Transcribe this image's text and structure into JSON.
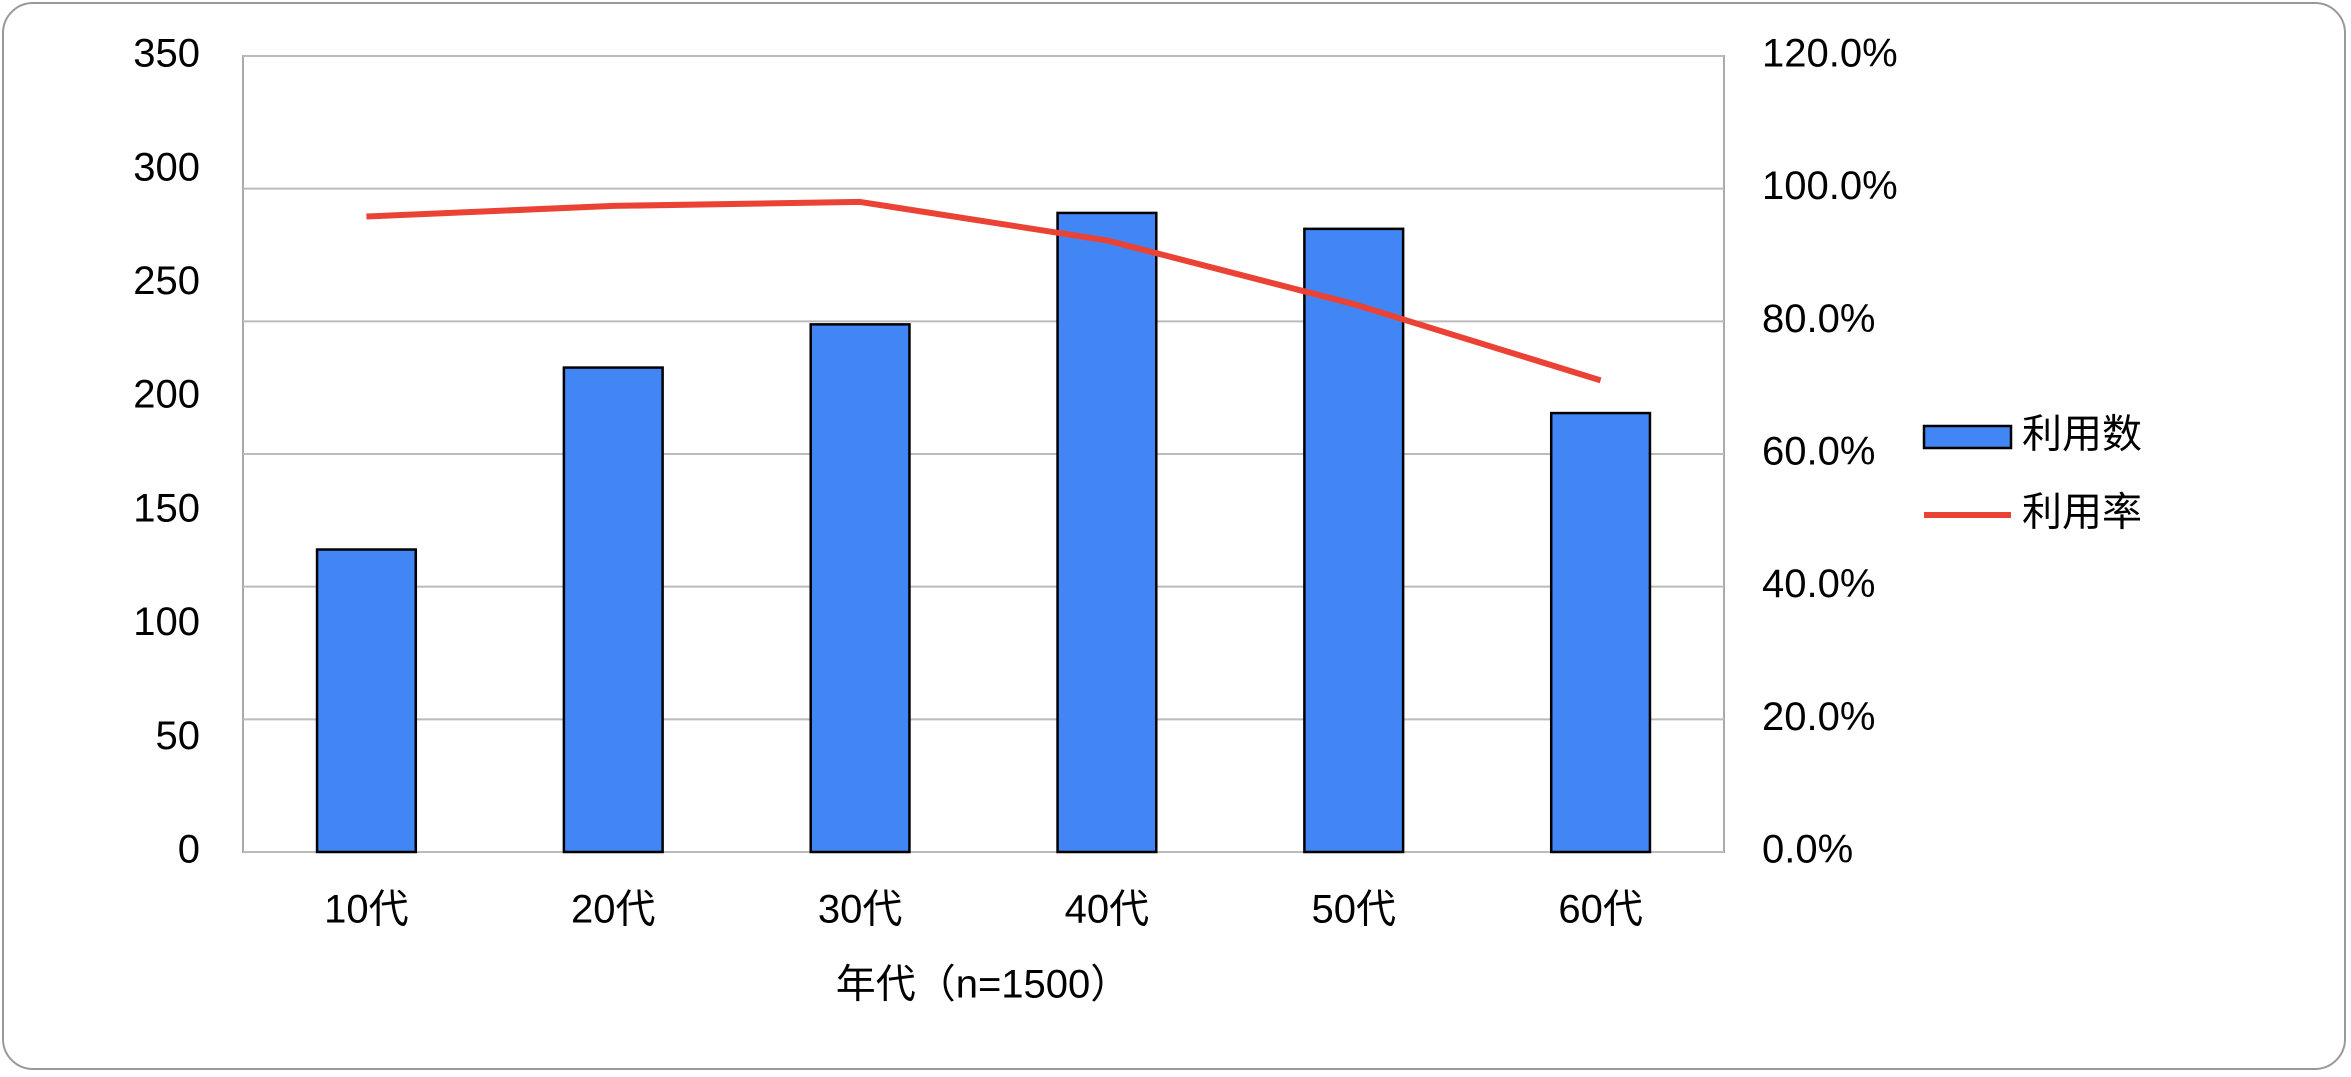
{
  "chart_data": {
    "type": "bar",
    "x_label": "年代（n=1500）",
    "categories": [
      "10代",
      "20代",
      "30代",
      "40代",
      "50代",
      "60代"
    ],
    "series": [
      {
        "name": "利用数",
        "type": "bar",
        "color": "#4285f4",
        "values": [
          133,
          213,
          232,
          281,
          274,
          193
        ]
      },
      {
        "name": "利用率",
        "type": "line",
        "axis": "y2",
        "color": "#ea4335",
        "values": [
          95.8,
          97.4,
          98.0,
          92.2,
          82.6,
          71.1
        ]
      }
    ],
    "ylim": [
      0,
      350
    ],
    "yticks": [
      0,
      50,
      100,
      150,
      200,
      250,
      300,
      350
    ],
    "y2lim": [
      0,
      120
    ],
    "y2ticks": [
      {
        "value": 0,
        "label": "0.0%"
      },
      {
        "value": 20,
        "label": "20.0%"
      },
      {
        "value": 40,
        "label": "40.0%"
      },
      {
        "value": 60,
        "label": "60.0%"
      },
      {
        "value": 80,
        "label": "80.0%"
      },
      {
        "value": 100,
        "label": "100.0%"
      },
      {
        "value": 120,
        "label": "120.0%"
      }
    ],
    "grid": true,
    "legend": "right"
  }
}
